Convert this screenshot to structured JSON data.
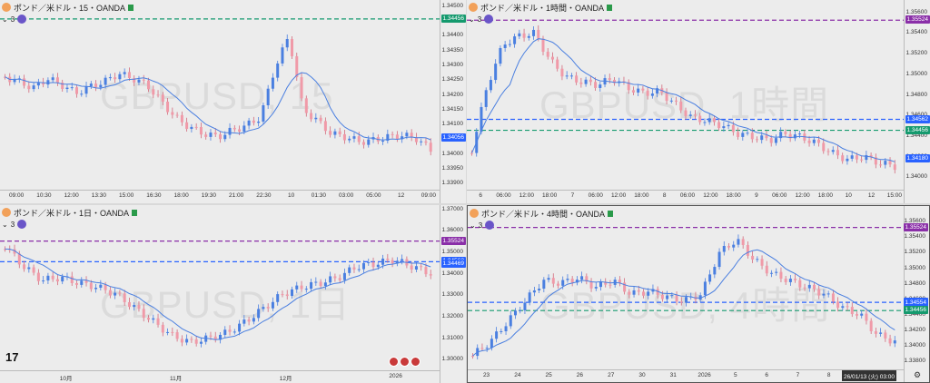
{
  "panes": [
    {
      "title": "ポンド／米ドル・15・OANDA",
      "indicator": "3",
      "watermark": "GBPUSD, 15",
      "price_labels": [
        {
          "text": "1.34456",
          "color": "#159a6e"
        },
        {
          "text": "1.34056",
          "color": "#2962ff"
        }
      ],
      "y_ticks": [
        "1.34500",
        "1.34450",
        "1.34400",
        "1.34350",
        "1.34300",
        "1.34250",
        "1.34200",
        "1.34150",
        "1.34100",
        "1.34050",
        "1.34000",
        "1.33950",
        "1.33900"
      ],
      "x_ticks": [
        "09:00",
        "10:30",
        "12:00",
        "13:30",
        "15:00",
        "16:30",
        "18:00",
        "19:30",
        "21:00",
        "22:30",
        "10",
        "01:30",
        "03:00",
        "05:00",
        "12",
        "09:00"
      ],
      "chart_data": {
        "type": "candlestick",
        "title": "",
        "ylim": [
          1.3388,
          1.3452
        ],
        "horizontal_lines": [
          1.34456
        ],
        "ma_line_color": "#4a7fe0",
        "up_color": "#4a7fe0",
        "down_color": "#f09aa8"
      }
    },
    {
      "title": "ポンド／米ドル・1時間・OANDA",
      "indicator": "3",
      "watermark": "GBPUSD, 1時間",
      "price_labels": [
        {
          "text": "1.35524",
          "color": "#8a2fa8"
        },
        {
          "text": "1.34562",
          "color": "#2962ff"
        },
        {
          "text": "1.34456",
          "color": "#159a6e"
        },
        {
          "text": "1.34180",
          "color": "#2962ff"
        }
      ],
      "y_ticks": [
        "1.35600",
        "1.35400",
        "1.35200",
        "1.35000",
        "1.34800",
        "1.34600",
        "1.34400",
        "1.34200",
        "1.34000"
      ],
      "x_ticks": [
        "6",
        "06:00",
        "12:00",
        "18:00",
        "7",
        "06:00",
        "12:00",
        "18:00",
        "8",
        "06:00",
        "12:00",
        "18:00",
        "9",
        "06:00",
        "12:00",
        "18:00",
        "10",
        "12",
        "15:00"
      ],
      "chart_data": {
        "type": "candlestick",
        "title": "",
        "ylim": [
          1.3388,
          1.3572
        ],
        "horizontal_lines": [
          1.35524,
          1.34562,
          1.34456
        ],
        "ma_line_color": "#4a7fe0",
        "up_color": "#4a7fe0",
        "down_color": "#f09aa8"
      }
    },
    {
      "title": "ポンド／米ドル・1日・OANDA",
      "indicator": "3",
      "watermark": "GBPUSD, 1日",
      "price_labels": [
        {
          "text": "1.35524",
          "color": "#8a2fa8"
        },
        {
          "text": "1.34562",
          "color": "#2962ff"
        },
        {
          "text": "1.34469",
          "color": "#2962ff"
        }
      ],
      "y_ticks": [
        "1.37000",
        "1.36000",
        "1.35000",
        "1.34000",
        "1.33000",
        "1.32000",
        "1.31000",
        "1.30000"
      ],
      "x_ticks": [
        "10月",
        "11月",
        "12月",
        "2026"
      ],
      "logo": "17",
      "chart_data": {
        "type": "candlestick",
        "title": "",
        "ylim": [
          1.295,
          1.372
        ],
        "horizontal_lines": [
          1.35524,
          1.34562
        ],
        "ma_line_color": "#4a7fe0",
        "up_color": "#4a7fe0",
        "down_color": "#f09aa8"
      }
    },
    {
      "title": "ポンド／米ドル・4時間・OANDA",
      "indicator": "3",
      "watermark": "GBPUSD, 4時間",
      "price_labels": [
        {
          "text": "1.35524",
          "color": "#8a2fa8"
        },
        {
          "text": "1.34562",
          "color": "#2962ff"
        },
        {
          "text": "1.34554",
          "color": "#2962ff"
        },
        {
          "text": "1.34456",
          "color": "#159a6e"
        }
      ],
      "y_ticks": [
        "1.35600",
        "1.35400",
        "1.35200",
        "1.35000",
        "1.34800",
        "1.34600",
        "1.34400",
        "1.34200",
        "1.34000",
        "1.33800"
      ],
      "x_ticks": [
        "23",
        "24",
        "25",
        "26",
        "27",
        "30",
        "31",
        "2026",
        "5",
        "6",
        "7",
        "8",
        "9",
        "10"
      ],
      "date_badge": "26/01/13 (火)  03:00",
      "chart_data": {
        "type": "candlestick",
        "title": "",
        "ylim": [
          1.337,
          1.358
        ],
        "horizontal_lines": [
          1.35524,
          1.34562,
          1.34456
        ],
        "ma_line_color": "#4a7fe0",
        "up_color": "#4a7fe0",
        "down_color": "#f09aa8"
      }
    }
  ]
}
